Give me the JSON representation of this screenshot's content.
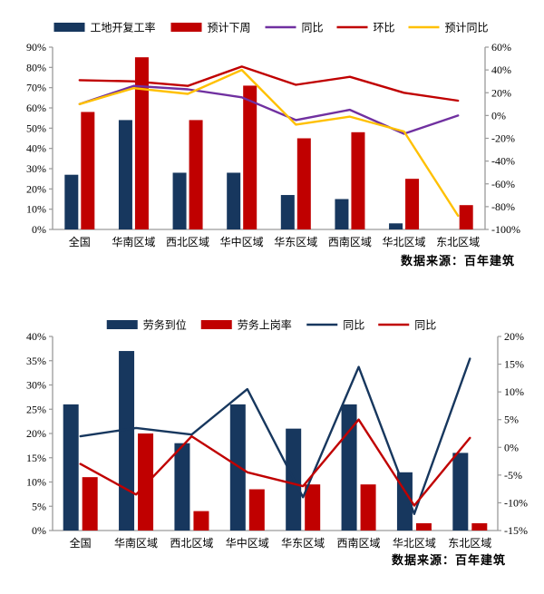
{
  "page": {
    "background": "#FFFFFF"
  },
  "chart_data": [
    {
      "type": "bar+line",
      "name": "construction-site-resumption-rate-by-region",
      "categories": [
        "全国",
        "华南区域",
        "西北区域",
        "华中区域",
        "华东区域",
        "西南区域",
        "华北区域",
        "东北区域"
      ],
      "bar_series": [
        {
          "name": "工地开复工率",
          "color": "#17375E",
          "axis": "left",
          "values": [
            27,
            54,
            28,
            28,
            17,
            15,
            3,
            0
          ]
        },
        {
          "name": "预计下周",
          "color": "#C00000",
          "axis": "left",
          "values": [
            58,
            85,
            54,
            71,
            45,
            48,
            25,
            12
          ]
        }
      ],
      "line_series": [
        {
          "name": "同比",
          "color": "#7030A0",
          "axis": "right",
          "values": [
            10,
            26,
            23,
            16,
            -4,
            5,
            -16,
            0
          ]
        },
        {
          "name": "环比",
          "color": "#C00000",
          "axis": "right",
          "values": [
            31,
            30,
            26,
            43,
            27,
            34,
            20,
            13
          ]
        },
        {
          "name": "预计同比",
          "color": "#FFC000",
          "axis": "right",
          "values": [
            10,
            24,
            19,
            40,
            -8,
            -1,
            -14,
            -88
          ]
        }
      ],
      "left_axis": {
        "min": 0,
        "max": 90,
        "step": 10,
        "format": "percent"
      },
      "right_axis": {
        "min": -100,
        "max": 60,
        "step": 20,
        "format": "percent"
      },
      "grid": false,
      "legend_position": "top",
      "source": "数据来源：百年建筑"
    },
    {
      "type": "bar+line",
      "name": "labor-availability-by-region",
      "categories": [
        "全国",
        "华南区域",
        "西北区域",
        "华中区域",
        "华东区域",
        "西南区域",
        "华北区域",
        "东北区域"
      ],
      "bar_series": [
        {
          "name": "劳务到位",
          "color": "#17375E",
          "axis": "left",
          "values": [
            26,
            37,
            18,
            26,
            21,
            26,
            12,
            16
          ]
        },
        {
          "name": "劳务上岗率",
          "color": "#C00000",
          "axis": "left",
          "values": [
            11,
            20,
            4,
            8.5,
            9.5,
            9.5,
            1.5,
            1.5
          ]
        }
      ],
      "line_series": [
        {
          "name": "同比",
          "color": "#17375E",
          "axis": "right",
          "values": [
            2,
            3.5,
            2.3,
            10.5,
            -9,
            14.5,
            -12,
            16
          ]
        },
        {
          "name": "同比",
          "color": "#C00000",
          "axis": "right",
          "values": [
            -3,
            -8.5,
            2,
            -4.5,
            -7,
            5,
            -10.5,
            1.7
          ]
        }
      ],
      "left_axis": {
        "min": 0,
        "max": 40,
        "step": 5,
        "format": "percent"
      },
      "right_axis": {
        "min": -15,
        "max": 20,
        "step": 5,
        "format": "percent"
      },
      "grid": false,
      "legend_position": "top",
      "source": "数据来源：百年建筑"
    }
  ]
}
